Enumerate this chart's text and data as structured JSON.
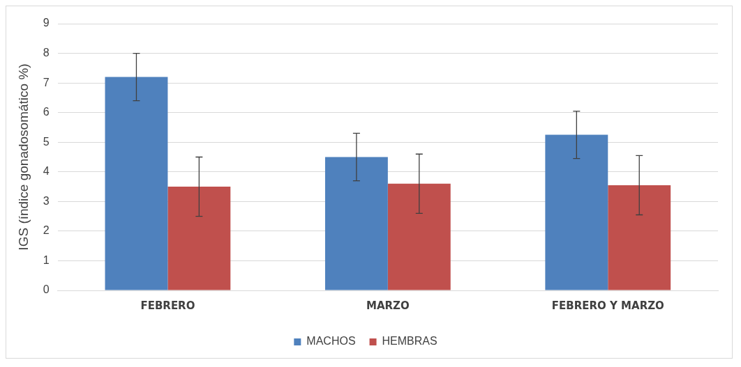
{
  "chart_data": {
    "type": "bar",
    "ylabel": "IGS (índice gonadosomático %)",
    "categories": [
      "FEBRERO",
      "MARZO",
      "FEBRERO Y MARZO"
    ],
    "series": [
      {
        "name": "MACHOS",
        "color": "#4f81bd",
        "values": [
          7.2,
          4.5,
          5.25
        ],
        "errors": [
          0.8,
          0.8,
          0.8
        ]
      },
      {
        "name": "HEMBRAS",
        "color": "#c0504d",
        "values": [
          3.5,
          3.6,
          3.55
        ],
        "errors": [
          1.0,
          1.0,
          1.0
        ]
      }
    ],
    "ylim": [
      0,
      9
    ],
    "yticks": [
      0,
      1,
      2,
      3,
      4,
      5,
      6,
      7,
      8,
      9
    ],
    "grid": "y",
    "legend": "bottom"
  }
}
